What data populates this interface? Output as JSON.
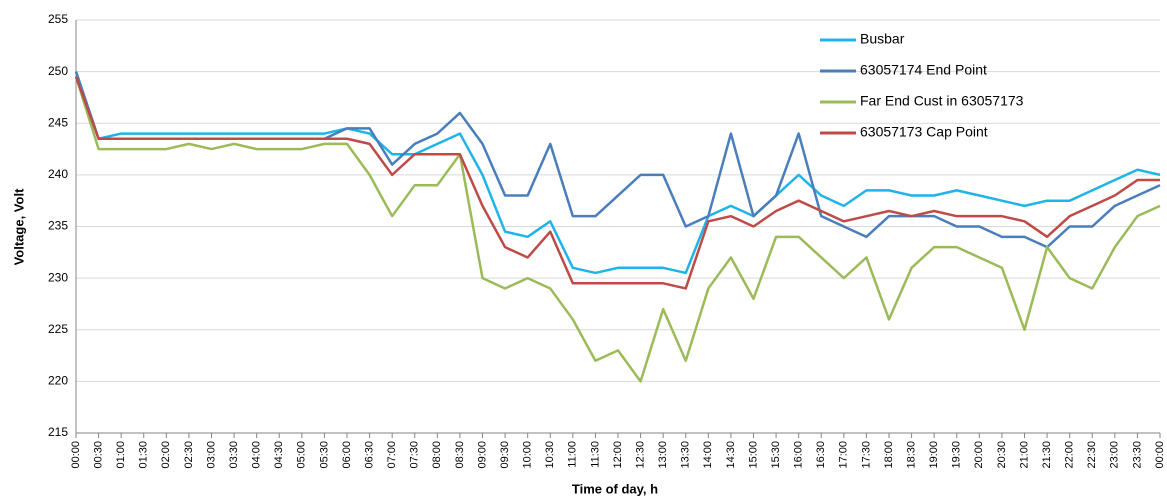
{
  "chart_data": {
    "type": "line",
    "x_label": "Time of day, h",
    "y_label": "Voltage, Volt",
    "categories": [
      "00:00",
      "00:30",
      "01:00",
      "01:30",
      "02:00",
      "02:30",
      "03:00",
      "03:30",
      "04:00",
      "04:30",
      "05:00",
      "05:30",
      "06:00",
      "06:30",
      "07:00",
      "07:30",
      "08:00",
      "08:30",
      "09:00",
      "09:30",
      "10:00",
      "10:30",
      "11:00",
      "11:30",
      "12:00",
      "12:30",
      "13:00",
      "13:30",
      "14:00",
      "14:30",
      "15:00",
      "15:30",
      "16:00",
      "16:30",
      "17:00",
      "17:30",
      "18:00",
      "18:30",
      "19:00",
      "19:30",
      "20:00",
      "20:30",
      "21:00",
      "21:30",
      "22:00",
      "22:30",
      "23:00",
      "23:30",
      "00:00"
    ],
    "series": [
      {
        "name": "Busbar",
        "color": "#1fb4e8",
        "values": [
          250,
          243.5,
          244,
          244,
          244,
          244,
          244,
          244,
          244,
          244,
          244,
          244,
          244.5,
          244,
          242,
          242,
          243,
          244,
          240,
          234.5,
          234,
          235.5,
          231,
          230.5,
          231,
          231,
          231,
          230.5,
          236,
          237,
          236,
          238,
          240,
          238,
          237,
          238.5,
          238.5,
          238,
          238,
          238.5,
          238,
          237.5,
          237,
          237.5,
          237.5,
          238.5,
          239.5,
          240.5,
          240
        ]
      },
      {
        "name": "63057174 End Point",
        "color": "#4a7ebb",
        "values": [
          250,
          243.5,
          243.5,
          243.5,
          243.5,
          243.5,
          243.5,
          243.5,
          243.5,
          243.5,
          243.5,
          243.5,
          244.5,
          244.5,
          241,
          243,
          244,
          246,
          243,
          238,
          238,
          243,
          236,
          236,
          238,
          240,
          240,
          235,
          236,
          244,
          236,
          238,
          244,
          236,
          235,
          234,
          236,
          236,
          236,
          235,
          235,
          234,
          234,
          233,
          235,
          235,
          237,
          238,
          239
        ]
      },
      {
        "name": "Far End Cust in 63057173",
        "color": "#9bbb59",
        "values": [
          249.5,
          242.5,
          242.5,
          242.5,
          242.5,
          243,
          242.5,
          243,
          242.5,
          242.5,
          242.5,
          243,
          243,
          240,
          236,
          239,
          239,
          242,
          230,
          229,
          230,
          229,
          226,
          222,
          223,
          220,
          227,
          222,
          229,
          232,
          228,
          234,
          234,
          232,
          230,
          232,
          226,
          231,
          233,
          233,
          232,
          231,
          225,
          233,
          230,
          229,
          233,
          236,
          237
        ]
      },
      {
        "name": "63057173 Cap Point",
        "color": "#be4b48",
        "values": [
          249.5,
          243.5,
          243.5,
          243.5,
          243.5,
          243.5,
          243.5,
          243.5,
          243.5,
          243.5,
          243.5,
          243.5,
          243.5,
          243,
          240,
          242,
          242,
          242,
          237,
          233,
          232,
          234.5,
          229.5,
          229.5,
          229.5,
          229.5,
          229.5,
          229,
          235.5,
          236,
          235,
          236.5,
          237.5,
          236.5,
          235.5,
          236,
          236.5,
          236,
          236.5,
          236,
          236,
          236,
          235.5,
          234,
          236,
          237,
          238,
          239.5,
          239.5
        ]
      }
    ],
    "ylim": [
      215,
      255
    ],
    "yticks": [
      215,
      220,
      225,
      230,
      235,
      240,
      245,
      250,
      255
    ],
    "grid": true,
    "legend": "upper right"
  }
}
